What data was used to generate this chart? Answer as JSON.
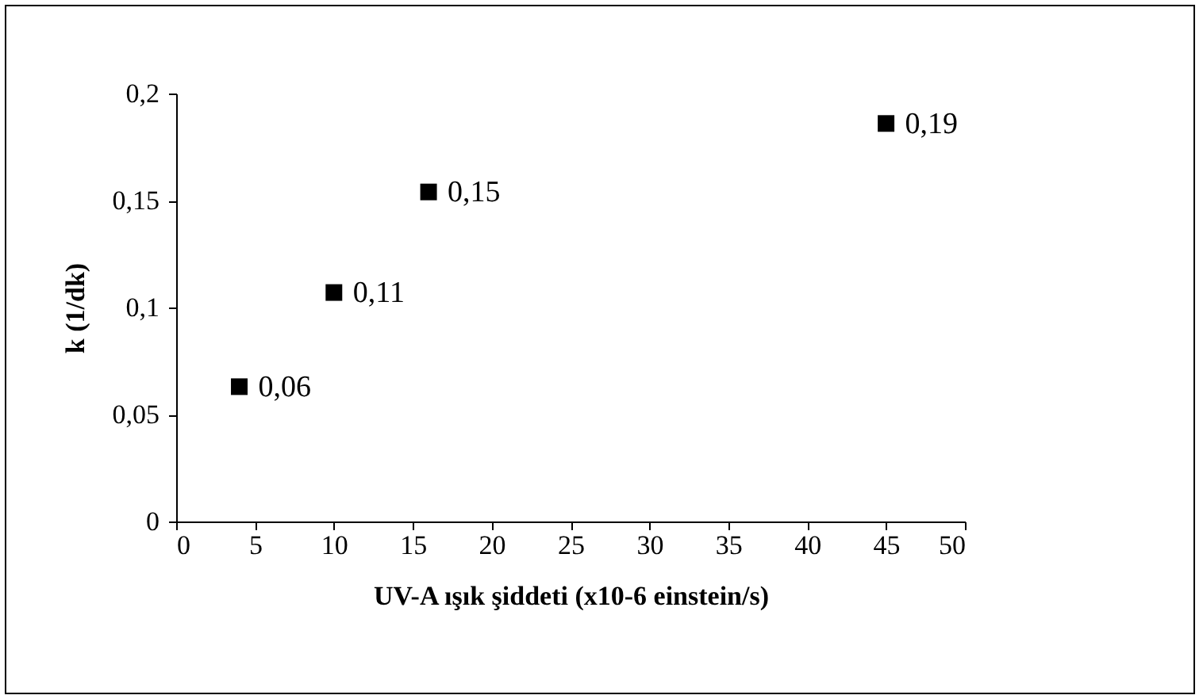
{
  "chart_data": {
    "type": "scatter",
    "xlabel": "UV-A ışık şiddeti (x10-6 einstein/s)",
    "ylabel": "k (1/dk)",
    "x": [
      4,
      10,
      16,
      45
    ],
    "series": [
      {
        "color": "#000000",
        "values": [
          0.063,
          0.107,
          0.154,
          0.186
        ],
        "value_labels": [
          "0,06",
          "0,11",
          "0,15",
          "0,19"
        ]
      }
    ],
    "xlim": [
      0,
      50
    ],
    "xticks": [
      0,
      5,
      10,
      15,
      20,
      25,
      30,
      35,
      40,
      45,
      50
    ],
    "ylim": [
      0,
      0.2
    ],
    "yticks": [
      0,
      {
        "value": 0.05,
        "label": "0,05"
      },
      {
        "value": 0.1,
        "label": "0,1"
      },
      {
        "value": 0.15,
        "label": "0,15"
      },
      {
        "value": 0.2,
        "label": "0,2"
      }
    ],
    "marker": "square",
    "grid": false,
    "legend": false
  }
}
